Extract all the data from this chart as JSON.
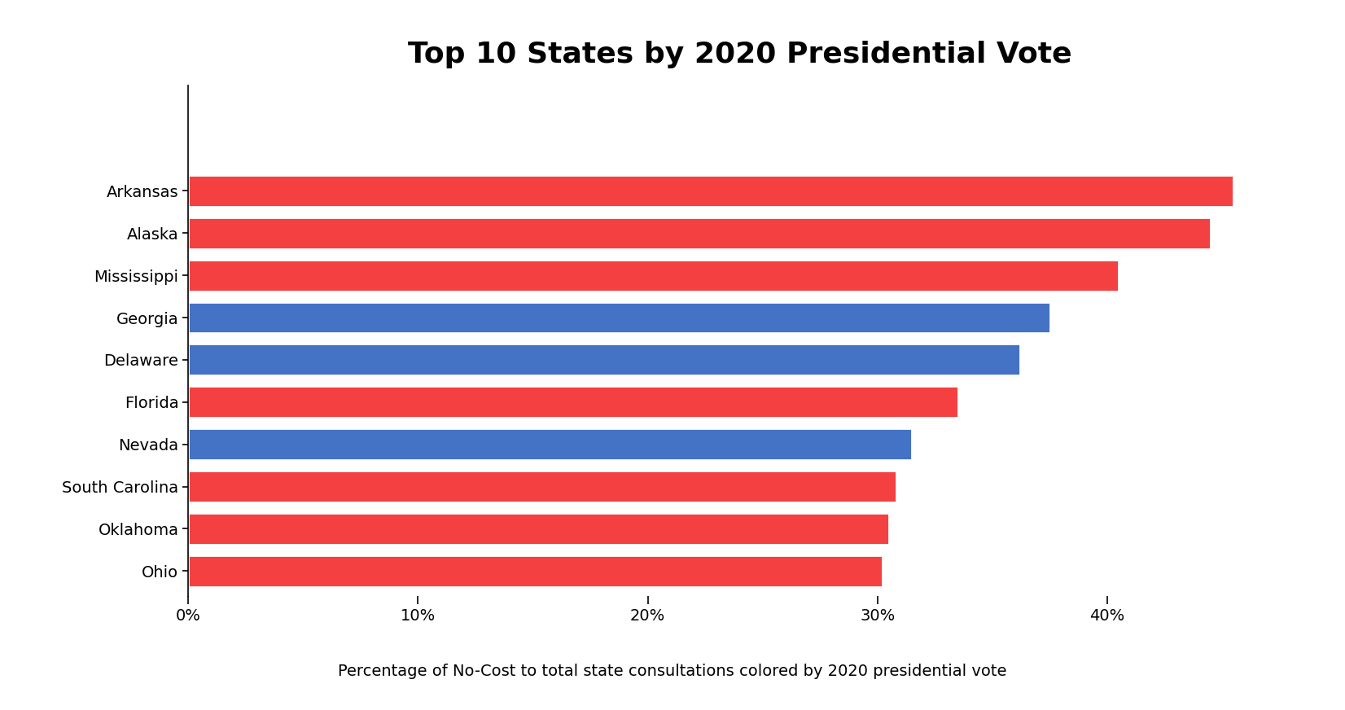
{
  "title": "Top 10 States by 2020 Presidential Vote",
  "subtitle": "Percentage of No-Cost to total state consultations colored by 2020 presidential vote",
  "states": [
    "Ohio",
    "Oklahoma",
    "South Carolina",
    "Nevada",
    "Florida",
    "Delaware",
    "Georgia",
    "Mississippi",
    "Alaska",
    "Arkansas"
  ],
  "values": [
    30.2,
    30.5,
    30.8,
    31.5,
    33.5,
    36.2,
    37.5,
    40.5,
    44.5,
    45.5
  ],
  "colors": [
    "#f44040",
    "#f44040",
    "#f44040",
    "#4472c4",
    "#f44040",
    "#4472c4",
    "#4472c4",
    "#f44040",
    "#f44040",
    "#f44040"
  ],
  "background_color": "#ffffff",
  "xlim": [
    0,
    48
  ],
  "xticks": [
    0,
    10,
    20,
    30,
    40
  ],
  "xticklabels": [
    "0%",
    "10%",
    "20%",
    "30%",
    "40%"
  ],
  "title_fontsize": 26,
  "label_fontsize": 14,
  "subtitle_fontsize": 14
}
